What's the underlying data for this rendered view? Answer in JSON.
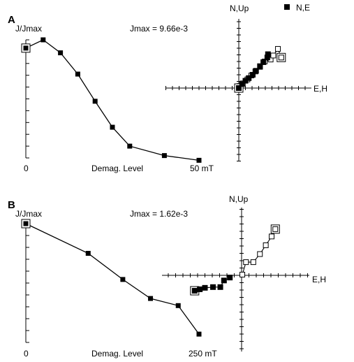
{
  "legend": {
    "label": "N,E"
  },
  "chart_data": [
    {
      "panel": "A",
      "type": "line",
      "ylabel": "J/Jmax",
      "annotation": "Jmax = 9.66e-3",
      "xlabel": "Demag. Level",
      "x_tick_labels": [
        "0",
        "50 mT"
      ],
      "xlim": [
        0,
        50
      ],
      "ylim": [
        0,
        1
      ],
      "x": [
        0,
        5,
        10,
        15,
        20,
        25,
        30,
        40,
        50
      ],
      "y": [
        0.93,
        1.0,
        0.89,
        0.71,
        0.48,
        0.26,
        0.1,
        0.02,
        -0.02
      ],
      "zijderveld": {
        "axis_up_label": "N,Up",
        "axis_right_label": "E,H",
        "horizontal_N_E": [
          [
            0.0,
            0.0
          ],
          [
            0.5,
            0.6
          ],
          [
            1.0,
            1.1
          ],
          [
            1.5,
            1.5
          ],
          [
            2.1,
            2.0
          ],
          [
            2.6,
            2.6
          ],
          [
            3.2,
            3.2
          ],
          [
            3.7,
            3.9
          ],
          [
            4.3,
            4.6
          ],
          [
            4.4,
            5.1
          ]
        ],
        "vertical_Up_H": [
          [
            0.1,
            0.3
          ],
          [
            0.6,
            0.7
          ],
          [
            1.3,
            1.3
          ],
          [
            1.9,
            1.9
          ],
          [
            2.5,
            2.5
          ],
          [
            3.2,
            3.3
          ],
          [
            3.9,
            4.0
          ],
          [
            4.8,
            4.3
          ],
          [
            5.2,
            4.9
          ],
          [
            5.9,
            5.9
          ],
          [
            6.4,
            4.6
          ]
        ]
      }
    },
    {
      "panel": "B",
      "type": "line",
      "ylabel": "J/Jmax",
      "annotation": "Jmax = 1.62e-3",
      "xlabel": "Demag. Level",
      "x_tick_labels": [
        "0",
        "250 mT"
      ],
      "xlim": [
        0,
        250
      ],
      "ylim": [
        0,
        1
      ],
      "x": [
        0,
        90,
        140,
        180,
        220,
        250
      ],
      "y": [
        1.0,
        0.75,
        0.53,
        0.37,
        0.31,
        0.07
      ],
      "zijderveld": {
        "axis_up_label": "N,Up",
        "axis_right_label": "E,H",
        "horizontal_N_E": [
          [
            -6.4,
            -2.1
          ],
          [
            -5.7,
            -1.9
          ],
          [
            -5.0,
            -1.7
          ],
          [
            -3.9,
            -1.6
          ],
          [
            -2.9,
            -1.6
          ],
          [
            -2.4,
            -0.7
          ],
          [
            -1.6,
            -0.3
          ]
        ],
        "vertical_Up_H": [
          [
            0.1,
            0.1
          ],
          [
            0.6,
            1.8
          ],
          [
            1.6,
            1.8
          ],
          [
            2.5,
            2.9
          ],
          [
            3.3,
            4.1
          ],
          [
            4.1,
            5.3
          ],
          [
            4.6,
            6.3
          ]
        ]
      }
    }
  ]
}
